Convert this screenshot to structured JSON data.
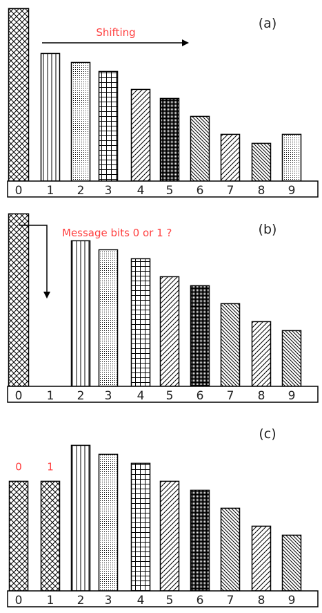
{
  "chart_data": [
    {
      "type": "bar",
      "panel_label": "(a)",
      "annotation": "Shifting",
      "categories": [
        "0",
        "1",
        "2",
        "3",
        "4",
        "5",
        "6",
        "7",
        "8",
        "9"
      ],
      "values": [
        96,
        71,
        66,
        61,
        51,
        46,
        36,
        26,
        21,
        26
      ],
      "patterns": [
        "crosshatch",
        "vertical",
        "dots",
        "grid",
        "diag-right",
        "dense-dots",
        "diag-left",
        "diag-right",
        "diag-left",
        "dots"
      ]
    },
    {
      "type": "bar",
      "panel_label": "(b)",
      "annotation": "Message bits 0 or 1 ?",
      "categories": [
        "0",
        "1",
        "2",
        "3",
        "4",
        "5",
        "6",
        "7",
        "8",
        "9"
      ],
      "values": [
        96,
        0,
        81,
        76,
        71,
        61,
        56,
        46,
        36,
        31
      ],
      "patterns": [
        "crosshatch",
        "none",
        "vertical",
        "dots",
        "grid",
        "diag-right",
        "dense-dots",
        "diag-left",
        "diag-right",
        "diag-left"
      ]
    },
    {
      "type": "bar",
      "panel_label": "(c)",
      "annotation": "",
      "categories": [
        "0",
        "1",
        "2",
        "3",
        "4",
        "5",
        "6",
        "7",
        "8",
        "9"
      ],
      "values": [
        61,
        61,
        81,
        76,
        71,
        61,
        56,
        46,
        36,
        31
      ],
      "bar_labels": [
        "0",
        "1",
        "",
        "",
        "",
        "",
        "",
        "",
        "",
        ""
      ],
      "patterns": [
        "crosshatch",
        "crosshatch",
        "vertical",
        "dots",
        "grid",
        "diag-right",
        "dense-dots",
        "diag-left",
        "diag-right",
        "diag-left"
      ]
    }
  ],
  "colors": {
    "annotation": "#ff4040",
    "ink": "#000000"
  }
}
